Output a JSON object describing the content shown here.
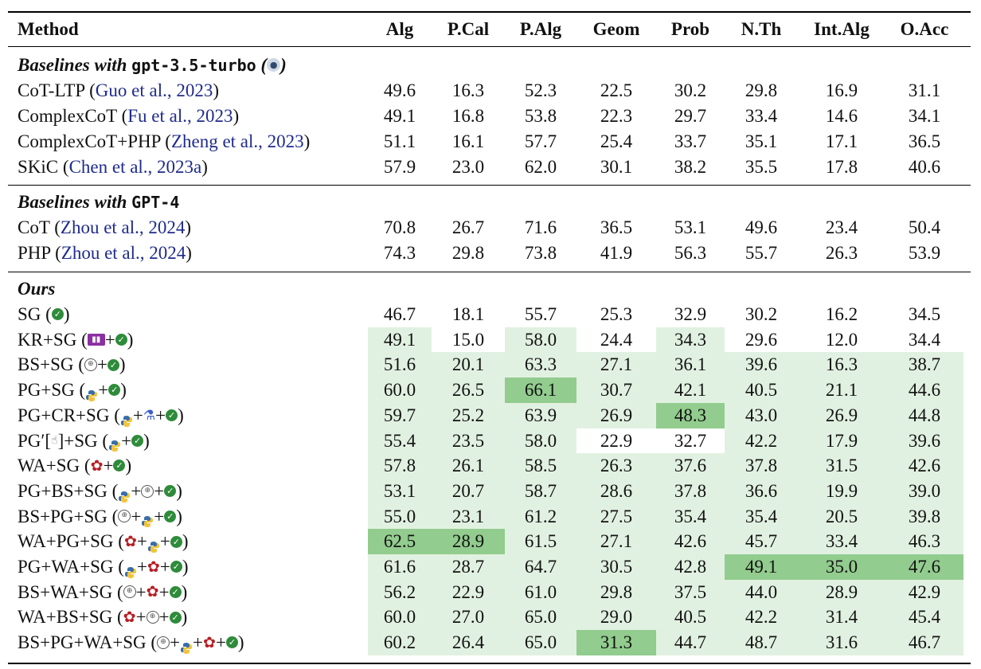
{
  "header": {
    "method": "Method",
    "cols": [
      "Alg",
      "P.Cal",
      "P.Alg",
      "Geom",
      "Prob",
      "N.Th",
      "Int.Alg",
      "O.Acc"
    ]
  },
  "colors": {
    "light": "#e1f1e1",
    "dark": "#92cc8e",
    "cite": "#1f2b8c"
  },
  "sections": {
    "gpt35": {
      "prefix": "Baselines with ",
      "model": "gpt-3.5-turbo",
      "icon": "robot-icon"
    },
    "gpt4": {
      "prefix": "Baselines with ",
      "model": "GPT-4"
    },
    "ours": {
      "label": "Ours"
    }
  },
  "baselines35": [
    {
      "method": "CoT-LTP ",
      "cite": "Guo et al., 2023",
      "values": [
        "49.6",
        "16.3",
        "52.3",
        "22.5",
        "30.2",
        "29.8",
        "16.9",
        "31.1"
      ]
    },
    {
      "method": "ComplexCoT ",
      "cite": "Fu et al., 2023",
      "values": [
        "49.1",
        "16.8",
        "53.8",
        "22.3",
        "29.7",
        "33.4",
        "14.6",
        "34.1"
      ]
    },
    {
      "method": "ComplexCoT+PHP ",
      "cite": "Zheng et al., 2023",
      "values": [
        "51.1",
        "16.1",
        "57.7",
        "25.4",
        "33.7",
        "35.1",
        "17.1",
        "36.5"
      ]
    },
    {
      "method": "SKiC ",
      "cite": "Chen et al., 2023a",
      "values": [
        "57.9",
        "23.0",
        "62.0",
        "30.1",
        "38.2",
        "35.5",
        "17.8",
        "40.6"
      ]
    }
  ],
  "baselines4": [
    {
      "method": "CoT ",
      "cite": "Zhou et al., 2024",
      "values": [
        "70.8",
        "26.7",
        "71.6",
        "36.5",
        "53.1",
        "49.6",
        "23.4",
        "50.4"
      ]
    },
    {
      "method": "PHP ",
      "cite": "Zhou et al., 2024",
      "values": [
        "74.3",
        "29.8",
        "73.8",
        "41.9",
        "56.3",
        "55.7",
        "26.3",
        "53.9"
      ]
    }
  ],
  "ours": [
    {
      "method": "SG",
      "icons": [
        "check-icon"
      ],
      "values": [
        "46.7",
        "18.1",
        "55.7",
        "25.3",
        "32.9",
        "30.2",
        "16.2",
        "34.5"
      ],
      "shade": [
        "",
        "",
        "",
        "",
        "",
        "",
        "",
        ""
      ]
    },
    {
      "method": "KR+SG",
      "icons": [
        "book-icon",
        "check-icon"
      ],
      "values": [
        "49.1",
        "15.0",
        "58.0",
        "24.4",
        "34.3",
        "29.6",
        "12.0",
        "34.4"
      ],
      "shade": [
        "l",
        "",
        "l",
        "",
        "l",
        "",
        "",
        ""
      ]
    },
    {
      "method": "BS+SG",
      "icons": [
        "globe-icon",
        "check-icon"
      ],
      "values": [
        "51.6",
        "20.1",
        "63.3",
        "27.1",
        "36.1",
        "39.6",
        "16.3",
        "38.7"
      ],
      "shade": [
        "l",
        "l",
        "l",
        "l",
        "l",
        "l",
        "l",
        "l"
      ]
    },
    {
      "method": "PG+SG",
      "icons": [
        "python-icon",
        "check-icon"
      ],
      "values": [
        "60.0",
        "26.5",
        "66.1",
        "30.7",
        "42.1",
        "40.5",
        "21.1",
        "44.6"
      ],
      "shade": [
        "l",
        "l",
        "d",
        "l",
        "l",
        "l",
        "l",
        "l"
      ]
    },
    {
      "method": "PG+CR+SG",
      "icons": [
        "python-icon",
        "flask-icon",
        "check-icon"
      ],
      "values": [
        "59.7",
        "25.2",
        "63.9",
        "26.9",
        "48.3",
        "43.0",
        "26.9",
        "44.8"
      ],
      "shade": [
        "l",
        "l",
        "l",
        "l",
        "d",
        "l",
        "l",
        "l"
      ]
    },
    {
      "method": "PG′[",
      "method_suffix": "]+SG",
      "icons": [
        "python-icon",
        "check-icon"
      ],
      "values": [
        "55.4",
        "23.5",
        "58.0",
        "22.9",
        "32.7",
        "42.2",
        "17.9",
        "39.6"
      ],
      "shade": [
        "l",
        "l",
        "l",
        "",
        "",
        "l",
        "l",
        "l"
      ]
    },
    {
      "method": "WA+SG",
      "icons": [
        "gear-icon",
        "check-icon"
      ],
      "values": [
        "57.8",
        "26.1",
        "58.5",
        "26.3",
        "37.6",
        "37.8",
        "31.5",
        "42.6"
      ],
      "shade": [
        "l",
        "l",
        "l",
        "l",
        "l",
        "l",
        "l",
        "l"
      ]
    },
    {
      "method": "PG+BS+SG",
      "icons": [
        "python-icon",
        "globe-icon",
        "check-icon"
      ],
      "values": [
        "53.1",
        "20.7",
        "58.7",
        "28.6",
        "37.8",
        "36.6",
        "19.9",
        "39.0"
      ],
      "shade": [
        "l",
        "l",
        "l",
        "l",
        "l",
        "l",
        "l",
        "l"
      ]
    },
    {
      "method": "BS+PG+SG",
      "icons": [
        "globe-icon",
        "python-icon",
        "check-icon"
      ],
      "values": [
        "55.0",
        "23.1",
        "61.2",
        "27.5",
        "35.4",
        "35.4",
        "20.5",
        "39.8"
      ],
      "shade": [
        "l",
        "l",
        "l",
        "l",
        "l",
        "l",
        "l",
        "l"
      ]
    },
    {
      "method": "WA+PG+SG",
      "icons": [
        "gear-icon",
        "python-icon",
        "check-icon"
      ],
      "values": [
        "62.5",
        "28.9",
        "61.5",
        "27.1",
        "42.6",
        "45.7",
        "33.4",
        "46.3"
      ],
      "shade": [
        "d",
        "d",
        "l",
        "l",
        "l",
        "l",
        "l",
        "l"
      ]
    },
    {
      "method": "PG+WA+SG",
      "icons": [
        "python-icon",
        "gear-icon",
        "check-icon"
      ],
      "values": [
        "61.6",
        "28.7",
        "64.7",
        "30.5",
        "42.8",
        "49.1",
        "35.0",
        "47.6"
      ],
      "shade": [
        "l",
        "l",
        "l",
        "l",
        "l",
        "d",
        "d",
        "d"
      ]
    },
    {
      "method": "BS+WA+SG",
      "icons": [
        "globe-icon",
        "gear-icon",
        "check-icon"
      ],
      "values": [
        "56.2",
        "22.9",
        "61.0",
        "29.8",
        "37.5",
        "44.0",
        "28.9",
        "42.9"
      ],
      "shade": [
        "l",
        "l",
        "l",
        "l",
        "l",
        "l",
        "l",
        "l"
      ]
    },
    {
      "method": "WA+BS+SG",
      "icons": [
        "gear-icon",
        "globe-icon",
        "check-icon"
      ],
      "values": [
        "60.0",
        "27.0",
        "65.0",
        "29.0",
        "40.5",
        "42.2",
        "31.4",
        "45.4"
      ],
      "shade": [
        "l",
        "l",
        "l",
        "l",
        "l",
        "l",
        "l",
        "l"
      ]
    },
    {
      "method": "BS+PG+WA+SG",
      "icons": [
        "globe-icon",
        "python-icon",
        "gear-icon",
        "check-icon"
      ],
      "values": [
        "60.2",
        "26.4",
        "65.0",
        "31.3",
        "44.7",
        "48.7",
        "31.6",
        "46.7"
      ],
      "shade": [
        "l",
        "l",
        "l",
        "d",
        "l",
        "l",
        "l",
        "l"
      ]
    }
  ]
}
